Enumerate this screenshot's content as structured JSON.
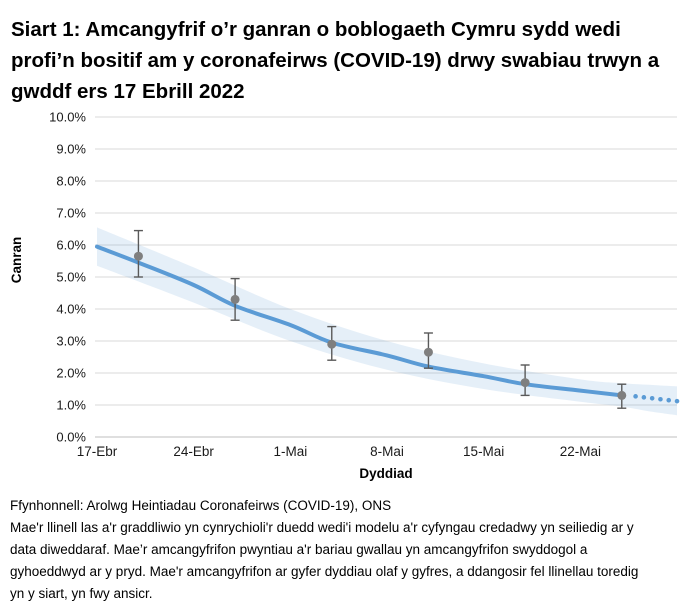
{
  "title": "Siart 1: Amcangyfrif o’r ganran o boblogaeth Cymru sydd wedi profi’n bositif am y coronafeirws (COVID-19) drwy swabiau trwyn a gwddf ers 17 Ebrill 2022",
  "chart_data": {
    "type": "line",
    "title": "Siart 1: Amcangyfrif o’r ganran o boblogaeth Cymru sydd wedi profi’n bositif am y coronafeirws (COVID-19) drwy swabiau trwyn a gwddf ers 17 Ebrill 2022",
    "xlabel": "Dyddiad",
    "ylabel": "Canran",
    "grid": {
      "horizontal": true,
      "color": "#d9d9d9",
      "axis_line_color": "#bfbfbf"
    },
    "x_axis": {
      "tick_labels": [
        "17-Ebr",
        "24-Ebr",
        "1-Mai",
        "8-Mai",
        "15-Mai",
        "22-Mai"
      ],
      "tick_days": [
        0,
        7,
        14,
        21,
        28,
        35
      ],
      "range_days": [
        0,
        42
      ]
    },
    "y_axis": {
      "tick_labels": [
        "0.0%",
        "1.0%",
        "2.0%",
        "3.0%",
        "4.0%",
        "5.0%",
        "6.0%",
        "7.0%",
        "8.0%",
        "9.0%",
        "10.0%"
      ],
      "tick_values": [
        0,
        1,
        2,
        3,
        4,
        5,
        6,
        7,
        8,
        9,
        10
      ],
      "range": [
        0,
        10
      ]
    },
    "series": [
      {
        "name": "credible-interval-band",
        "style": "band",
        "color": "#5b9bd5",
        "opacity": 0.16,
        "x_days": [
          0,
          7,
          14,
          21,
          28,
          35,
          38,
          40,
          42
        ],
        "upper": [
          6.55,
          5.3,
          4.0,
          3.0,
          2.3,
          1.8,
          1.68,
          1.63,
          1.58
        ],
        "lower": [
          5.35,
          4.2,
          3.0,
          2.1,
          1.5,
          1.1,
          0.95,
          0.8,
          0.68
        ]
      },
      {
        "name": "modelled-trend-solid",
        "style": "solid-line",
        "color": "#5b9bd5",
        "width": 4,
        "x_days": [
          0,
          3,
          7,
          10,
          14,
          17,
          21,
          24,
          28,
          31,
          35,
          38
        ],
        "values": [
          5.95,
          5.45,
          4.75,
          4.1,
          3.5,
          2.95,
          2.55,
          2.2,
          1.9,
          1.65,
          1.45,
          1.3
        ]
      },
      {
        "name": "modelled-trend-dotted-extension",
        "style": "dotted-line",
        "color": "#5b9bd5",
        "dot_radius": 2.3,
        "x_days": [
          39,
          39.6,
          40.2,
          40.8,
          41.4,
          42
        ],
        "values": [
          1.27,
          1.24,
          1.21,
          1.18,
          1.15,
          1.12
        ]
      },
      {
        "name": "official-point-estimates",
        "style": "points-with-error-bars",
        "point_color": "#7f7f7f",
        "error_color": "#595959",
        "x_days": [
          3,
          10,
          17,
          24,
          31,
          38
        ],
        "values": [
          5.65,
          4.3,
          2.9,
          2.65,
          1.7,
          1.3
        ],
        "ci_low": [
          5.0,
          3.65,
          2.4,
          2.15,
          1.3,
          0.9
        ],
        "ci_high": [
          6.45,
          4.95,
          3.45,
          3.25,
          2.25,
          1.65
        ]
      }
    ]
  },
  "footer": {
    "source": "Ffynhonnell: Arolwg Heintiadau Coronafeirws (COVID-19), ONS",
    "note": "Mae'r llinell las a'r graddliwio yn cynrychioli'r duedd wedi'i modelu a'r cyfyngau credadwy yn seiliedig ar y data diweddaraf. Mae’r amcangyfrifon pwyntiau a'r bariau gwallau yn amcangyfrifon swyddogol a gyhoeddwyd ar y pryd. Mae'r amcangyfrifon ar gyfer dyddiau olaf y gyfres, a ddangosir fel llinellau toredig yn y siart, yn fwy ansicr."
  }
}
